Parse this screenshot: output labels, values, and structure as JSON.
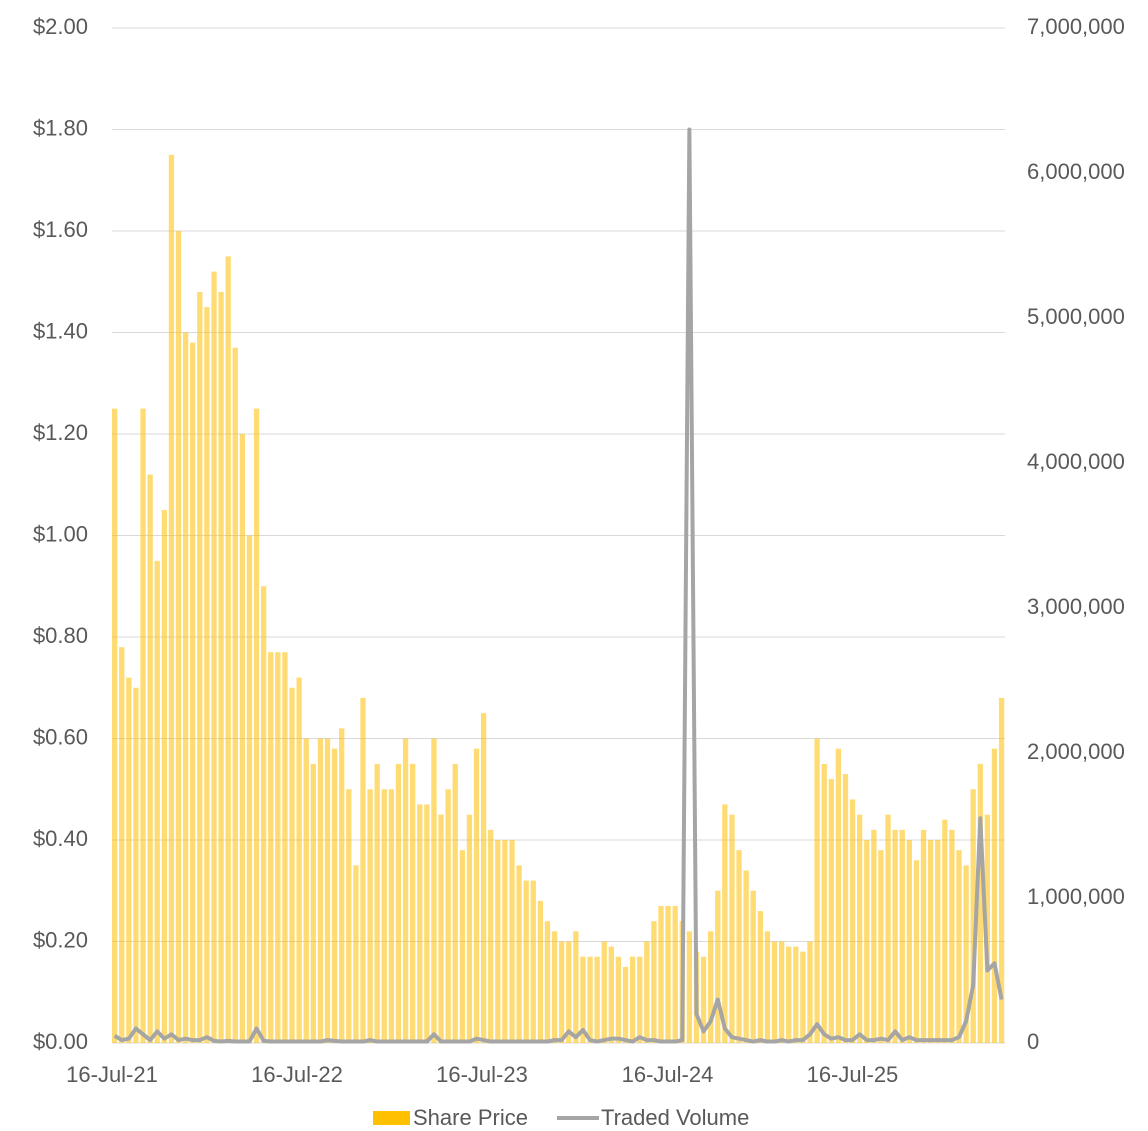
{
  "chart_data": {
    "type": "bar",
    "x": [
      "16-Jul-21",
      "30-Jul-21",
      "13-Aug-21",
      "27-Aug-21",
      "10-Sep-21",
      "24-Sep-21",
      "8-Oct-21",
      "22-Oct-21",
      "5-Nov-21",
      "19-Nov-21",
      "3-Dec-21",
      "17-Dec-21",
      "31-Dec-21",
      "14-Jan-22",
      "28-Jan-22",
      "11-Feb-22",
      "25-Feb-22",
      "11-Mar-22",
      "25-Mar-22",
      "8-Apr-22",
      "22-Apr-22",
      "6-May-22",
      "20-May-22",
      "3-Jun-22",
      "17-Jun-22",
      "1-Jul-22",
      "15-Jul-22",
      "29-Jul-22",
      "12-Aug-22",
      "26-Aug-22",
      "9-Sep-22",
      "23-Sep-22",
      "7-Oct-22",
      "21-Oct-22",
      "4-Nov-22",
      "18-Nov-22",
      "2-Dec-22",
      "16-Dec-22",
      "30-Dec-22",
      "13-Jan-23",
      "27-Jan-23",
      "10-Feb-23",
      "24-Feb-23",
      "10-Mar-23",
      "24-Mar-23",
      "7-Apr-23",
      "21-Apr-23",
      "5-May-23",
      "19-May-23",
      "2-Jun-23",
      "16-Jun-23",
      "30-Jun-23",
      "14-Jul-23",
      "28-Jul-23",
      "11-Aug-23",
      "25-Aug-23",
      "8-Sep-23",
      "22-Sep-23",
      "6-Oct-23",
      "20-Oct-23",
      "3-Nov-23",
      "17-Nov-23",
      "1-Dec-23",
      "15-Dec-23",
      "29-Dec-23",
      "12-Jan-24",
      "26-Jan-24",
      "9-Feb-24",
      "23-Feb-24",
      "8-Mar-24",
      "22-Mar-24",
      "5-Apr-24",
      "19-Apr-24",
      "3-May-24",
      "17-May-24",
      "31-May-24",
      "14-Jun-24",
      "28-Jun-24",
      "12-Jul-24",
      "26-Jul-24",
      "9-Aug-24",
      "23-Aug-24",
      "6-Sep-24",
      "20-Sep-24",
      "4-Oct-24",
      "18-Oct-24",
      "1-Nov-24",
      "15-Nov-24",
      "29-Nov-24",
      "13-Dec-24",
      "27-Dec-24",
      "10-Jan-25",
      "24-Jan-25",
      "7-Feb-25",
      "21-Feb-25",
      "7-Mar-25",
      "21-Mar-25",
      "4-Apr-25",
      "18-Apr-25",
      "2-May-25",
      "16-May-25",
      "30-May-25",
      "13-Jun-25",
      "27-Jun-25",
      "11-Jul-25",
      "25-Jul-25",
      "8-Aug-25",
      "22-Aug-25",
      "5-Sep-25",
      "19-Sep-25",
      "3-Oct-25",
      "17-Oct-25",
      "31-Oct-25",
      "14-Nov-25",
      "28-Nov-25",
      "12-Dec-25",
      "26-Dec-25",
      "9-Jan-26",
      "23-Jan-26",
      "6-Feb-26",
      "20-Feb-26",
      "6-Mar-26",
      "20-Mar-26",
      "3-Apr-26",
      "17-Apr-26",
      "1-May-26"
    ],
    "series": [
      {
        "name": "Share Price",
        "type": "bar",
        "color": "#ffc000",
        "values": [
          1.25,
          0.78,
          0.72,
          0.7,
          1.25,
          1.12,
          0.95,
          1.05,
          1.75,
          1.6,
          1.4,
          1.38,
          1.48,
          1.45,
          1.52,
          1.48,
          1.55,
          1.37,
          1.2,
          1.0,
          1.25,
          0.9,
          0.77,
          0.77,
          0.77,
          0.7,
          0.72,
          0.6,
          0.55,
          0.6,
          0.6,
          0.58,
          0.62,
          0.5,
          0.35,
          0.68,
          0.5,
          0.55,
          0.5,
          0.5,
          0.55,
          0.6,
          0.55,
          0.47,
          0.47,
          0.6,
          0.45,
          0.5,
          0.55,
          0.38,
          0.45,
          0.58,
          0.65,
          0.42,
          0.4,
          0.4,
          0.4,
          0.35,
          0.32,
          0.32,
          0.28,
          0.24,
          0.22,
          0.2,
          0.2,
          0.22,
          0.17,
          0.17,
          0.17,
          0.2,
          0.19,
          0.17,
          0.15,
          0.17,
          0.17,
          0.2,
          0.24,
          0.27,
          0.27,
          0.27,
          0.24,
          0.22,
          0.18,
          0.17,
          0.22,
          0.3,
          0.47,
          0.45,
          0.38,
          0.34,
          0.3,
          0.26,
          0.22,
          0.2,
          0.2,
          0.19,
          0.19,
          0.18,
          0.2,
          0.6,
          0.55,
          0.52,
          0.58,
          0.53,
          0.48,
          0.45,
          0.4,
          0.42,
          0.38,
          0.45,
          0.42,
          0.42,
          0.4,
          0.36,
          0.42,
          0.4,
          0.4,
          0.44,
          0.42,
          0.38,
          0.35,
          0.5,
          0.55,
          0.45,
          0.58,
          0.68
        ]
      },
      {
        "name": "Traded Volume",
        "type": "line",
        "axis": "y2",
        "color": "#a5a5a5",
        "values": [
          50000,
          20000,
          30000,
          100000,
          60000,
          20000,
          80000,
          30000,
          60000,
          20000,
          30000,
          20000,
          20000,
          40000,
          15000,
          10000,
          15000,
          10000,
          10000,
          10000,
          100000,
          15000,
          10000,
          10000,
          10000,
          10000,
          10000,
          10000,
          10000,
          10000,
          20000,
          15000,
          10000,
          10000,
          10000,
          10000,
          20000,
          10000,
          10000,
          10000,
          10000,
          10000,
          10000,
          10000,
          10000,
          60000,
          10000,
          10000,
          10000,
          10000,
          10000,
          30000,
          20000,
          10000,
          10000,
          10000,
          10000,
          10000,
          10000,
          10000,
          10000,
          10000,
          20000,
          20000,
          80000,
          40000,
          90000,
          20000,
          10000,
          20000,
          30000,
          30000,
          20000,
          10000,
          40000,
          20000,
          20000,
          10000,
          10000,
          10000,
          20000,
          6300000,
          200000,
          80000,
          150000,
          300000,
          100000,
          40000,
          30000,
          20000,
          10000,
          20000,
          10000,
          10000,
          20000,
          10000,
          20000,
          20000,
          60000,
          130000,
          60000,
          30000,
          40000,
          20000,
          20000,
          60000,
          20000,
          20000,
          30000,
          20000,
          80000,
          20000,
          40000,
          20000,
          20000,
          20000,
          20000,
          20000,
          20000,
          40000,
          150000,
          400000,
          1550000,
          500000,
          550000,
          300000
        ]
      }
    ],
    "xlim": [
      "16-Jul-21",
      "13-May-26"
    ],
    "xticks": [
      "16-Jul-21",
      "16-Jul-22",
      "16-Jul-23",
      "16-Jul-24",
      "16-Jul-25"
    ],
    "ylim": [
      0,
      2
    ],
    "yticks": [
      {
        "value": 0,
        "label": "$0.00"
      },
      {
        "value": 0.2,
        "label": "$0.20"
      },
      {
        "value": 0.4,
        "label": "$0.40"
      },
      {
        "value": 0.6,
        "label": "$0.60"
      },
      {
        "value": 0.8,
        "label": "$0.80"
      },
      {
        "value": 1,
        "label": "$1.00"
      },
      {
        "value": 1.2,
        "label": "$1.20"
      },
      {
        "value": 1.4,
        "label": "$1.40"
      },
      {
        "value": 1.6,
        "label": "$1.60"
      },
      {
        "value": 1.8,
        "label": "$1.80"
      },
      {
        "value": 2,
        "label": "$2.00"
      }
    ],
    "y2lim": [
      0,
      7000000
    ],
    "y2ticks": [
      0,
      {
        "value": 1000000,
        "label": "1,000,000"
      },
      {
        "value": 2000000,
        "label": "2,000,000"
      },
      {
        "value": 3000000,
        "label": "3,000,000"
      },
      {
        "value": 4000000,
        "label": "4,000,000"
      },
      {
        "value": 5000000,
        "label": "5,000,000"
      },
      {
        "value": 6000000,
        "label": "6,000,000"
      },
      {
        "value": 7000000,
        "label": "7,000,000"
      }
    ],
    "grid": true,
    "legend": "bottom"
  }
}
